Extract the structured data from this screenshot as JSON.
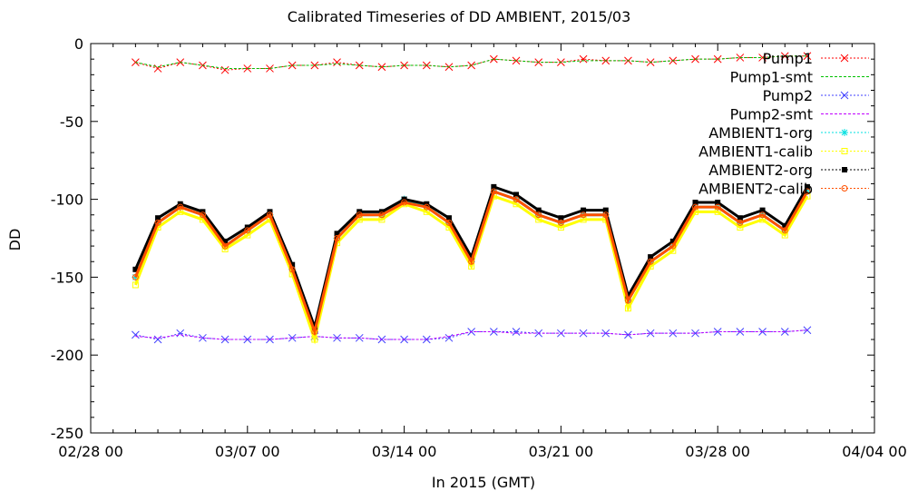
{
  "chart_data": {
    "type": "line",
    "title": "Calibrated Timeseries of DD AMBIENT, 2015/03",
    "xlabel": "In 2015 (GMT)",
    "ylabel": "DD",
    "x_ticks": [
      "02/28 00",
      "03/07 00",
      "03/14 00",
      "03/21 00",
      "03/28 00",
      "04/04 00"
    ],
    "xlim": [
      "2015-02-28 00:00",
      "2015-04-04 00:00"
    ],
    "ylim": [
      -250,
      0
    ],
    "y_ticks": [
      0,
      -50,
      -100,
      -150,
      -200,
      -250
    ],
    "grid": false,
    "legend_position": "top-right",
    "series": [
      {
        "name": "Pump1",
        "color": "#ff0000",
        "marker": "x",
        "x_day": [
          2,
          3,
          4,
          5,
          6,
          7,
          8,
          9,
          10,
          11,
          12,
          13,
          14,
          15,
          16,
          17,
          18,
          19,
          20,
          21,
          22,
          23,
          24,
          25,
          26,
          27,
          28,
          29,
          30,
          31,
          32
        ],
        "values": [
          -12,
          -16,
          -12,
          -14,
          -17,
          -16,
          -16,
          -14,
          -14,
          -12,
          -14,
          -15,
          -14,
          -14,
          -15,
          -14,
          -10,
          -11,
          -12,
          -12,
          -10,
          -11,
          -11,
          -12,
          -11,
          -10,
          -10,
          -9,
          -9,
          -8,
          -8
        ]
      },
      {
        "name": "Pump1-smt",
        "color": "#00c000",
        "marker": "line",
        "x_day": [
          2,
          3,
          4,
          5,
          6,
          7,
          8,
          9,
          10,
          11,
          12,
          13,
          14,
          15,
          16,
          17,
          18,
          19,
          20,
          21,
          22,
          23,
          24,
          25,
          26,
          27,
          28,
          29,
          30,
          31,
          32
        ],
        "values": [
          -12,
          -15,
          -12,
          -14,
          -16,
          -16,
          -16,
          -14,
          -14,
          -13,
          -14,
          -15,
          -14,
          -14,
          -15,
          -14,
          -10,
          -11,
          -12,
          -12,
          -11,
          -11,
          -11,
          -12,
          -11,
          -10,
          -10,
          -9,
          -9,
          -8,
          -8
        ]
      },
      {
        "name": "Pump2",
        "color": "#4040ff",
        "marker": "x",
        "x_day": [
          2,
          3,
          4,
          5,
          6,
          7,
          8,
          9,
          10,
          11,
          12,
          13,
          14,
          15,
          16,
          17,
          18,
          19,
          20,
          21,
          22,
          23,
          24,
          25,
          26,
          27,
          28,
          29,
          30,
          31,
          32
        ],
        "values": [
          -187,
          -190,
          -186,
          -189,
          -190,
          -190,
          -190,
          -189,
          -188,
          -189,
          -189,
          -190,
          -190,
          -190,
          -189,
          -185,
          -185,
          -185,
          -186,
          -186,
          -186,
          -186,
          -187,
          -186,
          -186,
          -186,
          -185,
          -185,
          -185,
          -185,
          -184
        ]
      },
      {
        "name": "Pump2-smt",
        "color": "#c000ff",
        "marker": "line",
        "x_day": [
          2,
          3,
          4,
          5,
          6,
          7,
          8,
          9,
          10,
          11,
          12,
          13,
          14,
          15,
          16,
          17,
          18,
          19,
          20,
          21,
          22,
          23,
          24,
          25,
          26,
          27,
          28,
          29,
          30,
          31,
          32
        ],
        "values": [
          -188,
          -189,
          -187,
          -189,
          -190,
          -190,
          -190,
          -189,
          -188,
          -189,
          -189,
          -190,
          -190,
          -190,
          -188,
          -185,
          -185,
          -186,
          -186,
          -186,
          -186,
          -186,
          -187,
          -186,
          -186,
          -186,
          -185,
          -185,
          -185,
          -185,
          -184
        ]
      },
      {
        "name": "AMBIENT1-org",
        "color": "#00e0e0",
        "marker": "star",
        "x_day": [
          2,
          3,
          4,
          5,
          6,
          7,
          8,
          9,
          10,
          11,
          12,
          13,
          14,
          15,
          16,
          17,
          18,
          19,
          20,
          21,
          22,
          23,
          24,
          25,
          26,
          27,
          28,
          29,
          30,
          31,
          32
        ],
        "values": [
          -150,
          -115,
          -105,
          -110,
          -130,
          -120,
          -110,
          -145,
          -185,
          -125,
          -110,
          -110,
          -100,
          -105,
          -115,
          -140,
          -95,
          -100,
          -110,
          -115,
          -110,
          -110,
          -165,
          -140,
          -130,
          -105,
          -105,
          -115,
          -110,
          -120,
          -95
        ]
      },
      {
        "name": "AMBIENT1-calib",
        "color": "#ffff00",
        "marker": "square",
        "x_day": [
          2,
          3,
          4,
          5,
          6,
          7,
          8,
          9,
          10,
          11,
          12,
          13,
          14,
          15,
          16,
          17,
          18,
          19,
          20,
          21,
          22,
          23,
          24,
          25,
          26,
          27,
          28,
          29,
          30,
          31,
          32
        ],
        "values": [
          -155,
          -118,
          -108,
          -113,
          -132,
          -123,
          -113,
          -148,
          -190,
          -128,
          -113,
          -113,
          -103,
          -108,
          -118,
          -143,
          -98,
          -103,
          -113,
          -118,
          -113,
          -113,
          -170,
          -143,
          -133,
          -108,
          -108,
          -118,
          -113,
          -123,
          -98
        ]
      },
      {
        "name": "AMBIENT2-org",
        "color": "#000000",
        "marker": "filled-square",
        "x_day": [
          2,
          3,
          4,
          5,
          6,
          7,
          8,
          9,
          10,
          11,
          12,
          13,
          14,
          15,
          16,
          17,
          18,
          19,
          20,
          21,
          22,
          23,
          24,
          25,
          26,
          27,
          28,
          29,
          30,
          31,
          32
        ],
        "values": [
          -145,
          -112,
          -103,
          -108,
          -127,
          -118,
          -108,
          -142,
          -182,
          -122,
          -108,
          -108,
          -100,
          -103,
          -112,
          -137,
          -92,
          -97,
          -107,
          -112,
          -107,
          -107,
          -162,
          -137,
          -127,
          -102,
          -102,
          -112,
          -107,
          -117,
          -92
        ]
      },
      {
        "name": "AMBIENT2-calib",
        "color": "#ff5000",
        "marker": "circle",
        "x_day": [
          2,
          3,
          4,
          5,
          6,
          7,
          8,
          9,
          10,
          11,
          12,
          13,
          14,
          15,
          16,
          17,
          18,
          19,
          20,
          21,
          22,
          23,
          24,
          25,
          26,
          27,
          28,
          29,
          30,
          31,
          32
        ],
        "values": [
          -150,
          -115,
          -105,
          -110,
          -130,
          -120,
          -110,
          -145,
          -185,
          -125,
          -110,
          -110,
          -102,
          -105,
          -115,
          -140,
          -95,
          -100,
          -110,
          -115,
          -110,
          -110,
          -165,
          -140,
          -130,
          -105,
          -105,
          -115,
          -110,
          -120,
          -95
        ]
      }
    ]
  }
}
